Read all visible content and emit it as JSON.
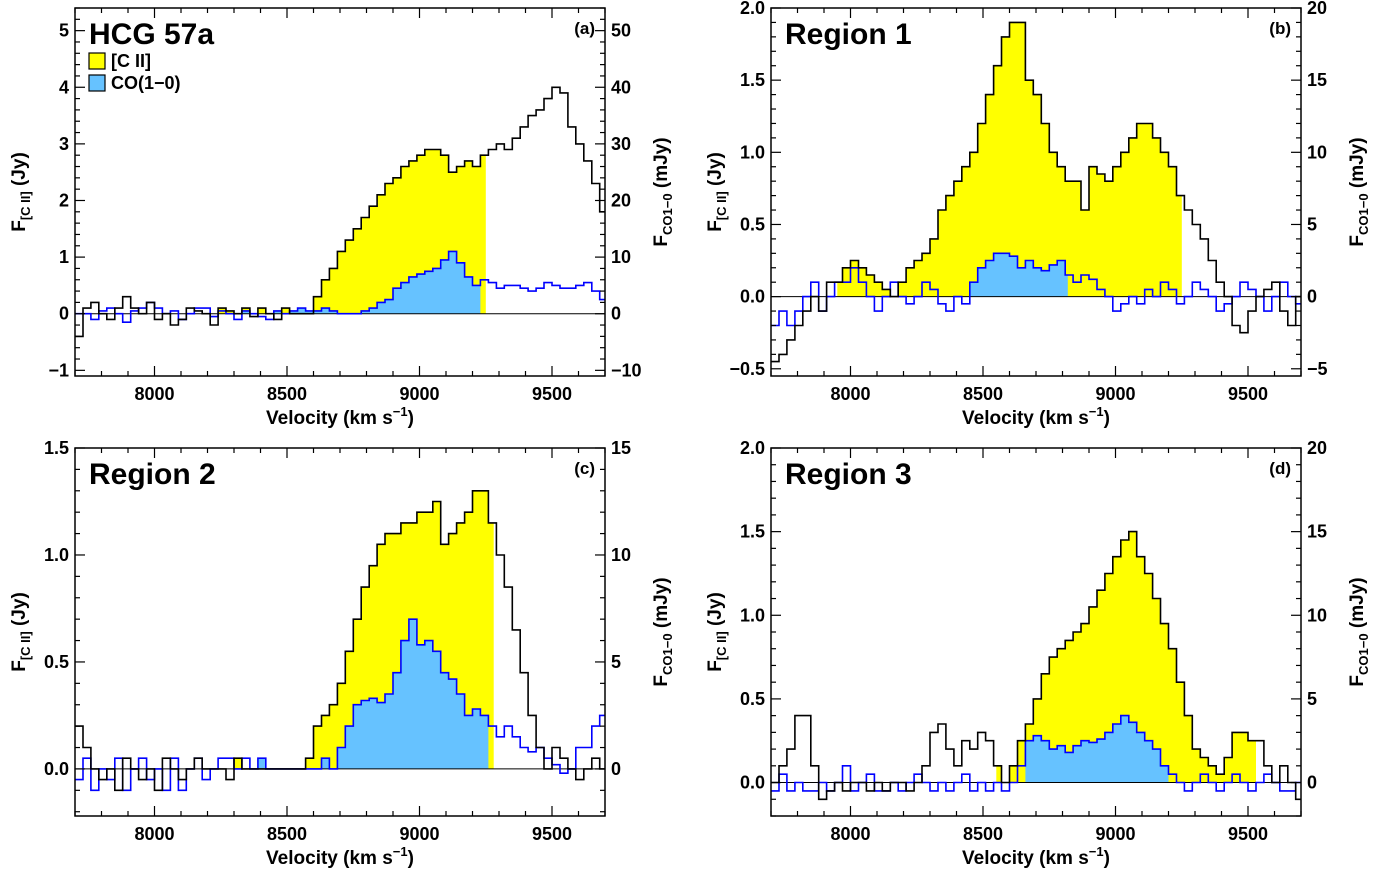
{
  "colors": {
    "cii_fill": "#ffff00",
    "co_fill": "#66c2ff",
    "cii_line": "#000000",
    "co_line": "#0000ff",
    "frame": "#000000"
  },
  "legend": {
    "items": [
      {
        "label": "[C II]",
        "color": "#ffff00"
      },
      {
        "label": "CO(1−0)",
        "color": "#66c2ff"
      }
    ]
  },
  "chart_data": [
    {
      "type": "area",
      "title": "HCG 57a",
      "panel_label": "(a)",
      "xlabel": "Velocity (km s",
      "xlabel_sup": "−1",
      "xlabel_end": ")",
      "ylabel_left": "F",
      "ylabel_left_sub": "[C II]",
      "ylabel_left_unit": " (Jy)",
      "ylabel_right": "F",
      "ylabel_right_sub": "CO1−0",
      "ylabel_right_unit": " (mJy)",
      "xlim": [
        7700,
        9700
      ],
      "ylim_left": [
        -1.1,
        5.4
      ],
      "ylim_right": [
        -11,
        54
      ],
      "xticks": [
        8000,
        8500,
        9000,
        9500
      ],
      "xtick_labels": [
        "8000",
        "8500",
        "9000",
        "9500"
      ],
      "yticks_left": [
        -1,
        0,
        1,
        2,
        3,
        4,
        5
      ],
      "ytick_labels_left": [
        "−1",
        "0",
        "1",
        "2",
        "3",
        "4",
        "5"
      ],
      "yticks_right": [
        -10,
        0,
        10,
        20,
        30,
        40,
        50
      ],
      "ytick_labels_right": [
        "−10",
        "0",
        "10",
        "20",
        "30",
        "40",
        "50"
      ],
      "fill_range": [
        8200,
        9250
      ],
      "cii_fill_range": [
        8200,
        9250
      ],
      "co_fill_range": [
        8270,
        9230
      ],
      "x_start": 7700,
      "bin_width": 30,
      "series": [
        {
          "name": "[C II]",
          "axis": "left",
          "values": [
            -0.4,
            0.1,
            0.2,
            0.0,
            -0.1,
            0.1,
            0.3,
            0.1,
            0.0,
            0.2,
            -0.1,
            0.0,
            -0.2,
            -0.1,
            0.1,
            0.05,
            0.0,
            -0.2,
            0.1,
            0.05,
            0.0,
            0.1,
            -0.05,
            0.1,
            0.0,
            -0.1,
            0.1,
            0.0,
            0.0,
            0.0,
            0.3,
            0.6,
            0.8,
            1.1,
            1.3,
            1.5,
            1.7,
            1.9,
            2.1,
            2.3,
            2.4,
            2.6,
            2.7,
            2.8,
            2.9,
            2.9,
            2.8,
            2.5,
            2.6,
            2.7,
            2.6,
            2.8,
            2.9,
            3.0,
            2.9,
            3.1,
            3.3,
            3.5,
            3.6,
            3.8,
            4.0,
            3.9,
            3.3,
            3.0,
            2.7,
            2.3,
            1.8,
            1.2,
            0.7,
            0.3,
            0.1,
            -0.1,
            0.1,
            0.0,
            0.1,
            0.0,
            0.1,
            0.05,
            -0.1,
            0.0,
            0.1,
            0.0,
            -0.05,
            0.0,
            0.0,
            0.0,
            -0.1,
            -0.05,
            0.0,
            0.0,
            0.0,
            0.0,
            0.0,
            0.0,
            0.0,
            0.0,
            0.0
          ]
        },
        {
          "name": "CO(1−0)",
          "axis": "right",
          "values": [
            0,
            0,
            -1,
            0.5,
            1,
            0,
            -1.5,
            0.5,
            1,
            2,
            1,
            0,
            0.5,
            -1,
            0,
            1,
            1,
            -0.5,
            0.5,
            0,
            -1,
            0.5,
            0,
            -0.5,
            -1,
            0.5,
            0,
            0.5,
            1,
            0.5,
            0.5,
            1,
            0.5,
            0,
            0,
            0,
            0.5,
            1,
            2,
            2.5,
            4.5,
            5.5,
            6.5,
            7,
            7.5,
            8,
            9.5,
            11,
            9,
            6.5,
            5,
            6,
            5.5,
            4.5,
            5,
            5,
            4.5,
            4,
            4.5,
            5.5,
            5,
            4.5,
            4.5,
            5,
            5.5,
            4,
            2.5,
            1.5,
            1,
            0.5,
            1,
            -0.5,
            0,
            -1,
            0.5,
            0,
            1,
            1,
            0.5,
            0,
            -0.5,
            0,
            1,
            -1,
            0.5,
            0,
            1,
            0,
            -0.5,
            0,
            0,
            0,
            0,
            0,
            0,
            0,
            0
          ]
        }
      ]
    },
    {
      "type": "area",
      "title": "Region 1",
      "panel_label": "(b)",
      "xlabel": "Velocity (km s",
      "xlabel_sup": "−1",
      "xlabel_end": ")",
      "ylabel_left": "F",
      "ylabel_left_sub": "[C II]",
      "ylabel_left_unit": " (Jy)",
      "ylabel_right": "F",
      "ylabel_right_sub": "CO1−0",
      "ylabel_right_unit": " (mJy)",
      "xlim": [
        7700,
        9700
      ],
      "ylim_left": [
        -0.55,
        2.0
      ],
      "ylim_right": [
        -5.5,
        20
      ],
      "xticks": [
        8000,
        8500,
        9000,
        9500
      ],
      "xtick_labels": [
        "8000",
        "8500",
        "9000",
        "9500"
      ],
      "yticks_left": [
        -0.5,
        0.0,
        0.5,
        1.0,
        1.5,
        2.0
      ],
      "ytick_labels_left": [
        "−0.5",
        "0.0",
        "0.5",
        "1.0",
        "1.5",
        "2.0"
      ],
      "yticks_right": [
        -5,
        0,
        5,
        10,
        15,
        20
      ],
      "ytick_labels_right": [
        "−5",
        "0",
        "5",
        "10",
        "15",
        "20"
      ],
      "cii_fill_range": [
        7950,
        9250
      ],
      "co_fill_range": [
        8400,
        8820
      ],
      "x_start": 7700,
      "bin_width": 30,
      "series": [
        {
          "name": "[C II]",
          "axis": "left",
          "values": [
            -0.45,
            -0.4,
            -0.3,
            -0.2,
            -0.1,
            0.0,
            -0.1,
            0.1,
            0.1,
            0.2,
            0.25,
            0.2,
            0.15,
            0.1,
            0.05,
            0.0,
            0.1,
            0.2,
            0.25,
            0.3,
            0.4,
            0.6,
            0.7,
            0.8,
            0.9,
            1.0,
            1.2,
            1.4,
            1.6,
            1.8,
            1.9,
            1.9,
            1.5,
            1.4,
            1.2,
            1.0,
            0.9,
            0.8,
            0.8,
            0.6,
            0.9,
            0.85,
            0.8,
            0.9,
            1.0,
            1.1,
            1.2,
            1.2,
            1.1,
            1.0,
            0.9,
            0.7,
            0.6,
            0.5,
            0.4,
            0.25,
            0.1,
            0.0,
            -0.2,
            -0.25,
            -0.1,
            0.0,
            0.05,
            0.1,
            -0.1,
            -0.2,
            0.0,
            0.1,
            0.0,
            0.05,
            0.0,
            0.1,
            0.0,
            0.0,
            0.0,
            0.0,
            0.0,
            0.0,
            0.0,
            0.0,
            0.0,
            0.0,
            0.0,
            0.0,
            0.0,
            0.0,
            0.0,
            0.0,
            0.0,
            0.0,
            0.0,
            0.0,
            0.0,
            0.0,
            0.0,
            0.0,
            0.0
          ]
        },
        {
          "name": "CO(1−0)",
          "axis": "right",
          "values": [
            -2,
            -1,
            -2,
            -1,
            0,
            1,
            -1,
            0,
            1,
            1,
            2,
            1,
            0,
            -1,
            0,
            1,
            0,
            -0.5,
            0,
            1,
            0.5,
            -0.5,
            -1,
            0,
            -0.5,
            1,
            2,
            2.5,
            3,
            3,
            2.8,
            2,
            2.5,
            2,
            1.8,
            2.2,
            2.5,
            1.5,
            1,
            1.5,
            1.2,
            0.5,
            0,
            -1,
            -0.5,
            0,
            -0.5,
            0.5,
            0,
            1,
            0.5,
            -0.5,
            0,
            1,
            0.5,
            0,
            -1,
            -0.5,
            0,
            1,
            0.5,
            0,
            -1,
            0,
            1,
            0,
            -0.5,
            0,
            0.5,
            0,
            0,
            0,
            0,
            0,
            0,
            0,
            0,
            0,
            0,
            0,
            0,
            0,
            0,
            0,
            0,
            0,
            0,
            0,
            0,
            0,
            0,
            0,
            0,
            0,
            0,
            0,
            0
          ]
        }
      ]
    },
    {
      "type": "area",
      "title": "Region 2",
      "panel_label": "(c)",
      "xlabel": "Velocity (km s",
      "xlabel_sup": "−1",
      "xlabel_end": ")",
      "ylabel_left": "F",
      "ylabel_left_sub": "[C II]",
      "ylabel_left_unit": " (Jy)",
      "ylabel_right": "F",
      "ylabel_right_sub": "CO1−0",
      "ylabel_right_unit": " (mJy)",
      "xlim": [
        7700,
        9700
      ],
      "ylim_left": [
        -0.22,
        1.5
      ],
      "ylim_right": [
        -2.2,
        15
      ],
      "xticks": [
        8000,
        8500,
        9000,
        9500
      ],
      "xtick_labels": [
        "8000",
        "8500",
        "9000",
        "9500"
      ],
      "yticks_left": [
        0.0,
        0.5,
        1.0,
        1.5
      ],
      "ytick_labels_left": [
        "0.0",
        "0.5",
        "1.0",
        "1.5"
      ],
      "yticks_right": [
        0,
        5,
        10,
        15
      ],
      "ytick_labels_right": [
        "0",
        "5",
        "10",
        "15"
      ],
      "cii_fill_range": [
        8250,
        9280
      ],
      "co_fill_range": [
        8380,
        9260
      ],
      "x_start": 7700,
      "bin_width": 30,
      "series": [
        {
          "name": "[C II]",
          "axis": "left",
          "values": [
            0.2,
            0.1,
            0.0,
            -0.05,
            0.0,
            -0.1,
            0.05,
            0.0,
            -0.05,
            0.0,
            -0.1,
            0.05,
            0.0,
            -0.05,
            0.0,
            0.05,
            0.0,
            0.0,
            0.0,
            -0.05,
            0.05,
            0.0,
            0.0,
            0.0,
            0.0,
            0.0,
            0.0,
            0.0,
            0.0,
            0.05,
            0.2,
            0.25,
            0.3,
            0.4,
            0.55,
            0.7,
            0.85,
            0.95,
            1.05,
            1.1,
            1.1,
            1.15,
            1.15,
            1.2,
            1.2,
            1.25,
            1.05,
            1.1,
            1.15,
            1.2,
            1.3,
            1.3,
            1.15,
            1.0,
            0.85,
            0.65,
            0.45,
            0.25,
            0.1,
            0.0,
            0.1,
            0.05,
            0.0,
            -0.05,
            0.0,
            0.05,
            0.0,
            0.0,
            0.1,
            0.15,
            0.1,
            0.0,
            0.0,
            0.0,
            0.0,
            0.0,
            0.0,
            0.0,
            0.0,
            0.0,
            0.0,
            0.0,
            0.0,
            0.0,
            0.0,
            0.0,
            0.0,
            0.0,
            0.0,
            0.0,
            0.0,
            0.0,
            0.0,
            0.0,
            0.0,
            0.0,
            0.0
          ]
        },
        {
          "name": "CO(1−0)",
          "axis": "right",
          "values": [
            -0.5,
            0.5,
            -1,
            0,
            -0.5,
            0.5,
            -1,
            0,
            0.5,
            -0.5,
            0,
            -1,
            0.5,
            -1,
            0,
            0.5,
            -0.5,
            0,
            0.5,
            0.5,
            0,
            0.5,
            0,
            0.5,
            0,
            0,
            0,
            0,
            0,
            0,
            0,
            0.5,
            0,
            1,
            2,
            3,
            3.2,
            3.3,
            3.1,
            3.5,
            4.5,
            6,
            7,
            5.8,
            6,
            5.5,
            4.5,
            4.2,
            3.5,
            2.5,
            2.8,
            2.5,
            2,
            1.5,
            2,
            1.5,
            1,
            0.8,
            1,
            0.5,
            0.2,
            -0.2,
            0,
            1,
            1,
            2,
            2.5,
            1,
            0,
            0.5,
            -1,
            0,
            0,
            0,
            0,
            0,
            0,
            0,
            0,
            0,
            0,
            0,
            0,
            0,
            0,
            0,
            0,
            0,
            0,
            0,
            0,
            0,
            0,
            0,
            0,
            0,
            0
          ]
        }
      ]
    },
    {
      "type": "area",
      "title": "Region 3",
      "panel_label": "(d)",
      "xlabel": "Velocity (km s",
      "xlabel_sup": "−1",
      "xlabel_end": ")",
      "ylabel_left": "F",
      "ylabel_left_sub": "[C II]",
      "ylabel_left_unit": " (Jy)",
      "ylabel_right": "F",
      "ylabel_right_sub": "CO1−0",
      "ylabel_right_unit": " (mJy)",
      "xlim": [
        7700,
        9700
      ],
      "ylim_left": [
        -0.2,
        2.0
      ],
      "ylim_right": [
        -2,
        20
      ],
      "xticks": [
        8000,
        8500,
        9000,
        9500
      ],
      "xtick_labels": [
        "8000",
        "8500",
        "9000",
        "9500"
      ],
      "yticks_left": [
        0.0,
        0.5,
        1.0,
        1.5,
        2.0
      ],
      "ytick_labels_left": [
        "0.0",
        "0.5",
        "1.0",
        "1.5",
        "2.0"
      ],
      "yticks_right": [
        0,
        5,
        10,
        15,
        20
      ],
      "ytick_labels_right": [
        "0",
        "5",
        "10",
        "15",
        "20"
      ],
      "cii_fill_range": [
        8550,
        9530
      ],
      "co_fill_range": [
        8660,
        9200
      ],
      "x_start": 7700,
      "bin_width": 30,
      "series": [
        {
          "name": "[C II]",
          "axis": "left",
          "values": [
            0.0,
            0.1,
            0.2,
            0.4,
            0.4,
            0.1,
            -0.1,
            -0.05,
            0.0,
            -0.05,
            0.0,
            0.0,
            -0.05,
            0.0,
            -0.05,
            0.0,
            0.0,
            -0.05,
            0.0,
            0.1,
            0.3,
            0.35,
            0.2,
            0.1,
            0.25,
            0.2,
            0.3,
            0.25,
            0.1,
            0.0,
            0.1,
            0.25,
            0.35,
            0.5,
            0.65,
            0.75,
            0.8,
            0.85,
            0.9,
            0.95,
            1.05,
            1.15,
            1.25,
            1.35,
            1.45,
            1.5,
            1.35,
            1.25,
            1.1,
            0.95,
            0.8,
            0.6,
            0.4,
            0.2,
            0.15,
            0.1,
            0.05,
            0.15,
            0.3,
            0.3,
            0.25,
            0.25,
            0.1,
            0.0,
            0.1,
            0.0,
            -0.1,
            0.0,
            0.0,
            0.0,
            0.0,
            0.0,
            0.0,
            0.0,
            0.0,
            0.0,
            0.0,
            0.0,
            0.0,
            0.0,
            0.0,
            0.0,
            0.0,
            0.0,
            0.0,
            0.0,
            0.0,
            0.0,
            0.0,
            0.0,
            0.0,
            0.0,
            0.0,
            0.0,
            0.0,
            0.0,
            0.0
          ]
        },
        {
          "name": "CO(1−0)",
          "axis": "right",
          "values": [
            -0.5,
            0.5,
            -0.5,
            0,
            -0.5,
            -0.5,
            0,
            -0.5,
            0,
            1,
            -0.5,
            0,
            0.5,
            -0.5,
            -0.5,
            0,
            -0.5,
            0,
            0.5,
            0,
            -0.5,
            0,
            -0.5,
            0,
            0.5,
            -0.5,
            0,
            -0.5,
            0,
            -0.5,
            0,
            1,
            2.5,
            2.8,
            2.5,
            2,
            2.2,
            1.8,
            2.2,
            2.5,
            2.4,
            2.6,
            3,
            3.5,
            4,
            3.6,
            3,
            2.5,
            2,
            1,
            0.5,
            0,
            -0.5,
            0,
            0.5,
            0,
            -0.5,
            0,
            0.5,
            0,
            -0.5,
            0,
            0.5,
            0,
            -0.5,
            -0.5,
            0,
            0,
            0,
            0,
            0,
            0,
            0,
            0,
            0,
            0,
            0,
            0,
            0,
            0,
            0,
            0,
            0,
            0,
            0,
            0,
            0,
            0,
            0,
            0,
            0,
            0,
            0,
            0,
            0,
            0,
            0
          ]
        }
      ]
    }
  ]
}
